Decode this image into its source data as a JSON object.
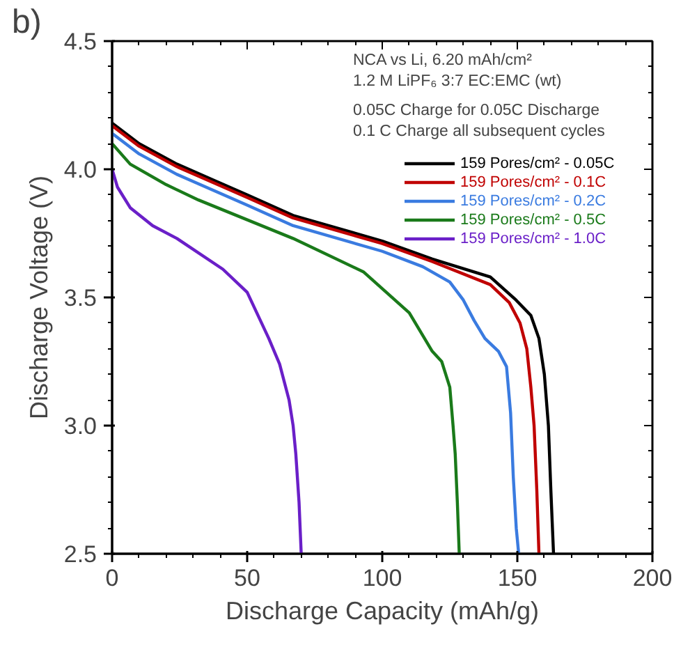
{
  "chart_data": {
    "type": "line",
    "xlabel": "Discharge Capacity (mAh/g)",
    "ylabel": "Discharge Voltage (V)",
    "annotations": [
      "b)",
      "NCA vs Li, 6.20 mAh/cm²",
      "1.2 M LiPF₆ 3:7 EC:EMC (wt)",
      "0.05C Charge for 0.05C Discharge",
      "0.1 C Charge all subsequent cycles"
    ],
    "xlim": [
      0,
      200
    ],
    "xticks": [
      0,
      50,
      100,
      150,
      200
    ],
    "ylim": [
      2.5,
      4.5
    ],
    "yticks": [
      {
        "value": 2.5,
        "label": "2.5"
      },
      {
        "value": 3.0,
        "label": "3.0"
      },
      {
        "value": 3.5,
        "label": "3.5"
      },
      {
        "value": 4.0,
        "label": "4.0"
      },
      {
        "value": 4.5,
        "label": "4.5"
      }
    ],
    "legend": "top right",
    "grid": false,
    "marker": "none",
    "line_style": "solid",
    "series": [
      {
        "name": "159 Pores/cm² - 0.05C",
        "color": "#000000",
        "x": [
          0,
          10,
          24,
          50,
          67,
          100,
          118.5,
          140,
          149.5,
          155,
          158,
          160,
          161.5,
          162.4,
          163.4
        ],
        "values": [
          4.18,
          4.1,
          4.02,
          3.9,
          3.82,
          3.72,
          3.65,
          3.58,
          3.49,
          3.43,
          3.34,
          3.2,
          3.0,
          2.75,
          2.5
        ]
      },
      {
        "name": "159 Pores/cm² - 0.1C",
        "color": "#c00000",
        "x": [
          0,
          10,
          24,
          50,
          67,
          100,
          118.5,
          140,
          147,
          151,
          153.5,
          155,
          156.2,
          157.2,
          158
        ],
        "values": [
          4.17,
          4.09,
          4.01,
          3.89,
          3.81,
          3.71,
          3.64,
          3.55,
          3.48,
          3.4,
          3.3,
          3.15,
          3.0,
          2.75,
          2.5
        ]
      },
      {
        "name": "159 Pores/cm² - 0.2C",
        "color": "#3a7be0",
        "x": [
          0,
          10,
          24,
          50,
          67,
          100,
          115,
          125,
          130,
          134,
          138,
          143,
          146,
          147.5,
          148.5,
          149.6,
          150.5
        ],
        "values": [
          4.14,
          4.06,
          3.98,
          3.86,
          3.78,
          3.68,
          3.62,
          3.56,
          3.49,
          3.41,
          3.34,
          3.29,
          3.23,
          3.05,
          2.8,
          2.6,
          2.5
        ]
      },
      {
        "name": "159 Pores/cm² - 0.5C",
        "color": "#1a7a1a",
        "x": [
          0,
          6.7,
          20,
          32,
          67,
          93,
          110,
          118.5,
          122,
          125,
          126.2,
          127,
          127.8,
          128.5
        ],
        "values": [
          4.1,
          4.02,
          3.94,
          3.88,
          3.73,
          3.6,
          3.44,
          3.29,
          3.25,
          3.15,
          3.0,
          2.89,
          2.7,
          2.5
        ]
      },
      {
        "name": "159 Pores/cm² - 1.0C",
        "color": "#6a1fc8",
        "x": [
          0,
          2,
          6.7,
          15,
          24,
          41,
          50,
          58,
          62,
          65.5,
          67,
          68,
          69.2,
          70
        ],
        "values": [
          4.0,
          3.93,
          3.85,
          3.78,
          3.73,
          3.61,
          3.52,
          3.34,
          3.24,
          3.1,
          3.0,
          2.89,
          2.7,
          2.5
        ]
      }
    ]
  }
}
